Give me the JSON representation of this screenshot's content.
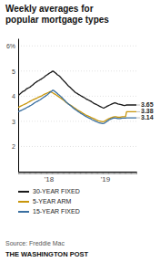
{
  "chart_data": {
    "type": "line",
    "title": "Weekly averages for\npopular mortgage types",
    "categories": [
      null,
      null,
      null,
      null,
      null,
      null,
      null,
      null,
      null,
      null,
      null,
      null,
      null,
      null,
      null,
      null,
      null,
      null,
      null,
      null,
      null,
      null,
      null,
      null,
      null,
      null,
      null,
      null,
      "'18",
      null,
      null,
      null,
      null,
      null,
      null,
      null,
      null,
      null,
      null,
      null,
      null,
      null,
      null,
      null,
      null,
      null,
      null,
      null,
      null,
      null,
      null,
      null,
      null,
      null,
      null,
      null,
      null,
      null,
      null,
      null,
      null,
      null,
      null,
      null,
      null,
      null,
      null,
      null,
      null,
      null,
      null,
      null,
      null,
      null,
      null,
      null,
      null,
      null,
      null,
      null,
      "'19",
      null,
      null,
      null,
      null,
      null,
      null,
      null,
      null,
      null,
      null,
      null,
      null,
      null,
      null,
      null,
      null,
      null,
      null,
      null,
      null,
      null,
      null,
      null,
      null,
      null,
      null,
      null,
      null,
      null
    ],
    "series": [
      {
        "name": "30-YEAR FIXED",
        "color": "#1a1a1a",
        "values": [
          4.03,
          4.06,
          4.1,
          4.14,
          4.18,
          4.2,
          4.22,
          4.26,
          4.3,
          4.32,
          4.34,
          4.36,
          4.4,
          4.43,
          4.47,
          4.51,
          4.54,
          4.57,
          4.6,
          4.62,
          4.65,
          4.67,
          4.7,
          4.73,
          4.76,
          4.8,
          4.83,
          4.86,
          4.89,
          4.92,
          4.94,
          4.97,
          5.0,
          4.97,
          4.94,
          4.9,
          4.86,
          4.83,
          4.8,
          4.76,
          4.7,
          4.66,
          4.61,
          4.57,
          4.52,
          4.47,
          4.42,
          4.38,
          4.35,
          4.3,
          4.26,
          4.22,
          4.18,
          4.14,
          4.12,
          4.09,
          4.06,
          4.04,
          4.01,
          3.99,
          3.96,
          3.94,
          3.91,
          3.88,
          3.86,
          3.84,
          3.82,
          3.8,
          3.77,
          3.74,
          3.71,
          3.69,
          3.67,
          3.65,
          3.63,
          3.6,
          3.58,
          3.56,
          3.54,
          3.53,
          3.55,
          3.57,
          3.6,
          3.62,
          3.64,
          3.66,
          3.68,
          3.7,
          3.72,
          3.74,
          3.73,
          3.71,
          3.69,
          3.68,
          3.67,
          3.66,
          3.65,
          3.64,
          3.63,
          3.64,
          3.65,
          3.65,
          3.65,
          3.65,
          3.65,
          3.65,
          3.65,
          3.65,
          3.65,
          3.65
        ]
      },
      {
        "name": "5-YEAR ARM",
        "color": "#c8960c",
        "values": [
          3.55,
          3.57,
          3.6,
          3.62,
          3.64,
          3.66,
          3.68,
          3.7,
          3.72,
          3.75,
          3.77,
          3.8,
          3.82,
          3.84,
          3.86,
          3.88,
          3.9,
          3.92,
          3.94,
          3.96,
          3.98,
          4.0,
          4.02,
          4.05,
          4.07,
          4.09,
          4.11,
          4.13,
          4.15,
          4.17,
          4.19,
          4.15,
          4.13,
          4.1,
          4.08,
          4.05,
          4.02,
          3.99,
          3.96,
          3.93,
          3.9,
          3.87,
          3.84,
          3.8,
          3.76,
          3.73,
          3.7,
          3.67,
          3.65,
          3.62,
          3.59,
          3.56,
          3.53,
          3.5,
          3.47,
          3.44,
          3.42,
          3.39,
          3.37,
          3.34,
          3.31,
          3.29,
          3.26,
          3.24,
          3.22,
          3.2,
          3.18,
          3.16,
          3.14,
          3.12,
          3.1,
          3.08,
          3.06,
          3.04,
          3.02,
          3.01,
          3.0,
          2.99,
          2.98,
          2.99,
          3.01,
          3.04,
          3.07,
          3.09,
          3.11,
          3.13,
          3.15,
          3.16,
          3.17,
          3.18,
          3.18,
          3.17,
          3.16,
          3.16,
          3.16,
          3.17,
          3.18,
          3.18,
          3.18,
          3.18,
          3.38,
          3.38,
          3.38,
          3.38,
          3.38,
          3.38,
          3.38,
          3.38,
          3.38,
          3.38
        ]
      },
      {
        "name": "15-YEAR FIXED",
        "color": "#3a6fa0",
        "values": [
          3.38,
          3.4,
          3.42,
          3.44,
          3.46,
          3.48,
          3.5,
          3.52,
          3.55,
          3.57,
          3.59,
          3.62,
          3.64,
          3.67,
          3.7,
          3.73,
          3.76,
          3.78,
          3.8,
          3.83,
          3.85,
          3.88,
          3.91,
          3.94,
          3.97,
          4.0,
          4.03,
          4.06,
          4.1,
          4.14,
          4.17,
          4.2,
          4.24,
          4.22,
          4.18,
          4.15,
          4.11,
          4.07,
          4.04,
          4.0,
          3.96,
          3.92,
          3.87,
          3.83,
          3.78,
          3.74,
          3.7,
          3.67,
          3.63,
          3.6,
          3.56,
          3.52,
          3.49,
          3.46,
          3.43,
          3.4,
          3.37,
          3.34,
          3.31,
          3.29,
          3.26,
          3.23,
          3.21,
          3.18,
          3.16,
          3.14,
          3.12,
          3.1,
          3.07,
          3.05,
          3.03,
          3.01,
          2.99,
          2.97,
          2.95,
          2.94,
          2.93,
          2.92,
          2.91,
          2.92,
          2.94,
          2.97,
          3.0,
          3.03,
          3.06,
          3.08,
          3.1,
          3.12,
          3.13,
          3.14,
          3.13,
          3.12,
          3.11,
          3.11,
          3.11,
          3.12,
          3.13,
          3.13,
          3.13,
          3.13,
          3.14,
          3.14,
          3.14,
          3.14,
          3.14,
          3.14,
          3.14,
          3.14,
          3.14,
          3.14
        ]
      }
    ],
    "ylim": [
      1,
      6.3
    ],
    "yticks": [
      2,
      3,
      4,
      5,
      {
        "value": 6,
        "label": "6%"
      }
    ],
    "grid": true,
    "annotations": [
      "3.65",
      "3.38",
      "3.14"
    ],
    "source": "Source: Freddie Mac",
    "publisher": "THE WASHINGTON POST"
  }
}
